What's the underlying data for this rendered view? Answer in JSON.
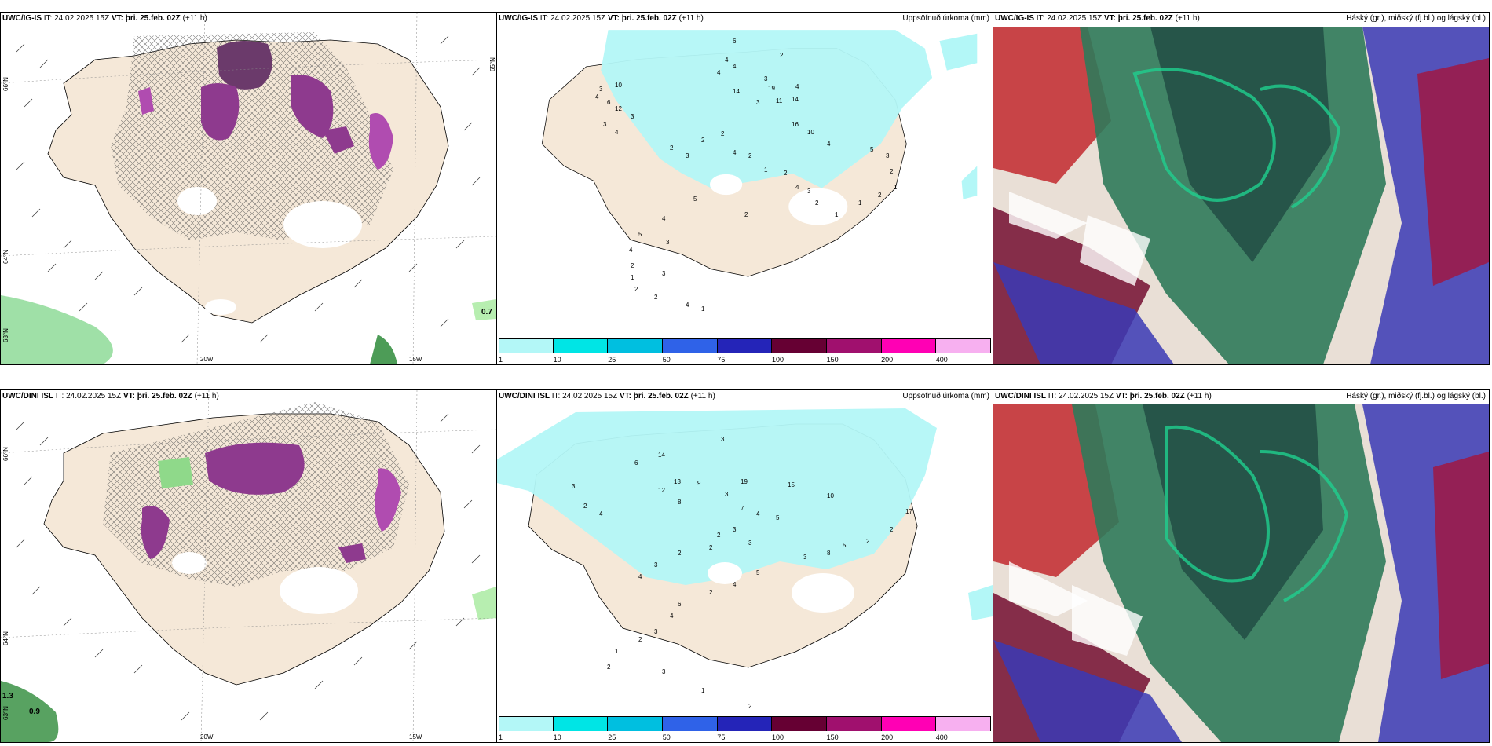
{
  "panels": {
    "p1": {
      "model": "UWC/IG-IS",
      "it_label": "IT: 24.02.2025 15Z",
      "vt_label": "VT: þri. 25.feb. 02Z",
      "lead": "(+11 h)",
      "title_right": ""
    },
    "p2": {
      "model": "UWC/IG-IS",
      "it_label": "IT: 24.02.2025 15Z",
      "vt_label": "VT: þri. 25.feb. 02Z",
      "lead": "(+11 h)",
      "title_right": "Uppsöfnuð úrkoma (mm)"
    },
    "p3": {
      "model": "UWC/IG-IS",
      "it_label": "IT: 24.02.2025 15Z",
      "vt_label": "VT: þri. 25.feb. 02Z",
      "lead": "(+11 h)",
      "title_right": "Háský (gr.), miðský (fj.bl.) og lágský (bl.)"
    },
    "p4": {
      "model": "UWC/DINI ISL",
      "it_label": "IT: 24.02.2025 15Z",
      "vt_label": "VT: þri. 25.feb. 02Z",
      "lead": "(+11 h)",
      "title_right": ""
    },
    "p5": {
      "model": "UWC/DINI ISL",
      "it_label": "IT: 24.02.2025 15Z",
      "vt_label": "VT: þri. 25.feb. 02Z",
      "lead": "(+11 h)",
      "title_right": "Uppsöfnuð úrkoma (mm)"
    },
    "p6": {
      "model": "UWC/DINI ISL",
      "it_label": "IT: 24.02.2025 15Z",
      "vt_label": "VT: þri. 25.feb. 02Z",
      "lead": "(+11 h)",
      "title_right": "Háský (gr.), miðský (fj.bl.) og lágský (bl.)"
    }
  },
  "grid_labels": {
    "lat_66": "66°N",
    "lat_64": "64°N",
    "lat_63": "63°N",
    "lon_20": "20W",
    "lon_15": "15W",
    "lat_65": "65°N"
  },
  "precip_legend": {
    "ticks": [
      "1",
      "10",
      "25",
      "50",
      "75",
      "100",
      "150",
      "200",
      "400"
    ],
    "colors": [
      "#b3f7f7",
      "#00e5e5",
      "#00bfe0",
      "#2f62e8",
      "#2424b8",
      "#660033",
      "#a0106e",
      "#ff00b4",
      "#f7b0f0"
    ]
  },
  "wind_panel_values": {
    "top_right_value": "0.7",
    "bottom_left_values": [
      "1.3",
      "0.9"
    ]
  },
  "precip_values_top": [
    "6",
    "2",
    "4",
    "4",
    "4",
    "3",
    "19",
    "14",
    "11",
    "14",
    "3",
    "4",
    "16",
    "10",
    "10",
    "6",
    "12",
    "3",
    "4",
    "2",
    "3",
    "2",
    "2",
    "4",
    "2",
    "1",
    "2",
    "4",
    "3",
    "2",
    "5",
    "4",
    "3",
    "5",
    "4",
    "2",
    "3",
    "2",
    "4",
    "5",
    "3",
    "2",
    "1",
    "2",
    "1",
    "1",
    "2",
    "1",
    "2",
    "1",
    "4",
    "3",
    "4",
    "3"
  ],
  "precip_values_bottom": [
    "6",
    "3",
    "3",
    "2",
    "4",
    "14",
    "13",
    "9",
    "19",
    "12",
    "15",
    "10",
    "8",
    "3",
    "7",
    "4",
    "5",
    "3",
    "2",
    "3",
    "2",
    "2",
    "3",
    "4",
    "17",
    "2",
    "2",
    "5",
    "8",
    "3",
    "5",
    "4",
    "2",
    "6",
    "4",
    "3",
    "2",
    "1",
    "2",
    "3",
    "1",
    "2"
  ],
  "colors": {
    "land": "#f5e8d8",
    "coast": "#000000",
    "precip_light": "#b3f7f7",
    "cloud_high": "#2f7a5a",
    "cloud_mid": "#3a3ab5",
    "cloud_low": "#9b1b4a"
  }
}
